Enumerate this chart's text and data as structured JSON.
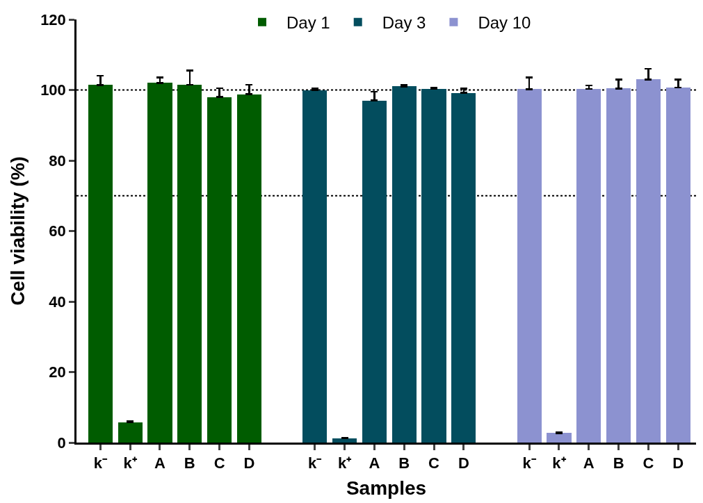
{
  "chart_data": {
    "type": "bar",
    "xlabel": "Samples",
    "ylabel": "Cell viability (%)",
    "categories": [
      "k⁻",
      "k⁺",
      "A",
      "B",
      "C",
      "D",
      "k⁻",
      "k⁺",
      "A",
      "B",
      "C",
      "D",
      "k⁻",
      "k⁺",
      "A",
      "B",
      "C",
      "D"
    ],
    "series": [
      {
        "name": "Day 1",
        "color": "#005c00",
        "values": [
          101.4,
          5.8,
          102,
          101.5,
          98,
          98.8,
          null,
          null,
          null,
          null,
          null,
          null,
          null,
          null,
          null,
          null,
          null,
          null
        ],
        "errors": [
          [
            101.4,
            104
          ],
          [
            5.8,
            6
          ],
          [
            102,
            103.5
          ],
          [
            101.5,
            105.5
          ],
          [
            98,
            100.5
          ],
          [
            98.8,
            101.5
          ],
          null,
          null,
          null,
          null,
          null,
          null,
          null,
          null,
          null,
          null,
          null,
          null
        ]
      },
      {
        "name": "Day 3",
        "color": "#034d5e",
        "values": [
          null,
          null,
          null,
          null,
          null,
          null,
          100,
          1.2,
          97,
          101,
          100.3,
          99.2,
          null,
          null,
          null,
          null,
          null,
          null
        ],
        "errors": [
          null,
          null,
          null,
          null,
          null,
          null,
          [
            100,
            100.5
          ],
          [
            1.2,
            1.4
          ],
          [
            97,
            99.5
          ],
          [
            101,
            101.4
          ],
          [
            100.3,
            100.7
          ],
          [
            99.2,
            100.4
          ],
          null,
          null,
          null,
          null,
          null,
          null
        ]
      },
      {
        "name": "Day 10",
        "color": "#8c92d0",
        "values": [
          null,
          null,
          null,
          null,
          null,
          null,
          null,
          null,
          null,
          null,
          null,
          null,
          100.2,
          2.7,
          100.3,
          100.4,
          103,
          100.7
        ],
        "errors": [
          null,
          null,
          null,
          null,
          null,
          null,
          null,
          null,
          null,
          null,
          null,
          null,
          [
            100.2,
            103.5
          ],
          [
            2.7,
            2.9
          ],
          [
            100.3,
            101.3
          ],
          [
            100.4,
            103
          ],
          [
            103,
            106
          ],
          [
            100.7,
            103
          ]
        ]
      }
    ],
    "ylim": [
      0,
      120
    ],
    "yticks": [
      0,
      20,
      40,
      60,
      80,
      100,
      120
    ],
    "ref_lines": [
      {
        "axis": "y",
        "value": 100,
        "line_style": "dotted",
        "color": "#000000"
      },
      {
        "axis": "y",
        "value": 70,
        "line_style": "dotted",
        "color": "#000000"
      }
    ],
    "legend": "top",
    "grid": false
  }
}
